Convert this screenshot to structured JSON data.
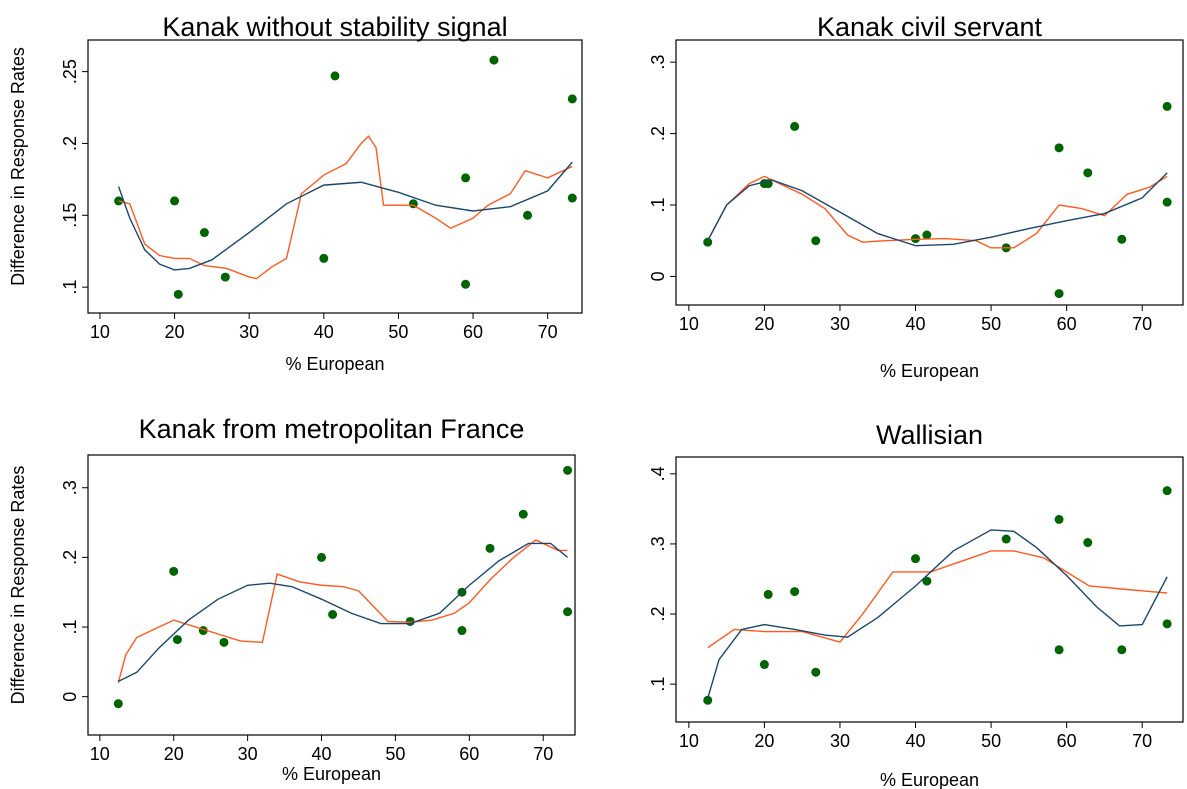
{
  "chart_data": [
    {
      "type": "scatter",
      "title": "Kanak without stability signal",
      "xlabel": "% European",
      "ylabel": "Difference in Response Rates",
      "xlim": [
        8.4,
        74.6
      ],
      "ylim": [
        0.082,
        0.272
      ],
      "xticks": [
        10,
        20,
        30,
        40,
        50,
        60,
        70
      ],
      "yticks": [
        {
          "value": 0.1,
          "label": ".1"
        },
        {
          "value": 0.15,
          "label": ".15"
        },
        {
          "value": 0.2,
          "label": ".2"
        },
        {
          "value": 0.25,
          "label": ".25"
        }
      ],
      "series": [
        {
          "mode": "markers",
          "color": "#006400",
          "x": [
            12.5,
            20,
            20.5,
            24,
            26.8,
            40,
            41.5,
            52,
            59,
            59,
            62.8,
            67.3,
            73.3,
            73.3
          ],
          "values": [
            0.16,
            0.16,
            0.095,
            0.138,
            0.107,
            0.12,
            0.247,
            0.158,
            0.176,
            0.102,
            0.258,
            0.15,
            0.231,
            0.162
          ]
        },
        {
          "mode": "line",
          "color": "#ff5a1f",
          "x": [
            12.5,
            14,
            16,
            18,
            20,
            22,
            24,
            27,
            30,
            31,
            33,
            35,
            37,
            40,
            43,
            45,
            46,
            47,
            48,
            52,
            55,
            57,
            60,
            62,
            65,
            67,
            70,
            73.3
          ],
          "values": [
            0.16,
            0.158,
            0.13,
            0.122,
            0.12,
            0.12,
            0.115,
            0.113,
            0.107,
            0.106,
            0.114,
            0.12,
            0.165,
            0.178,
            0.186,
            0.2,
            0.205,
            0.197,
            0.157,
            0.157,
            0.148,
            0.141,
            0.148,
            0.157,
            0.165,
            0.181,
            0.176,
            0.184
          ]
        },
        {
          "mode": "line",
          "color": "#1a476f",
          "x": [
            12.5,
            14,
            16,
            18,
            20,
            22,
            25,
            30,
            35,
            40,
            45,
            50,
            55,
            60,
            65,
            70,
            73.3
          ],
          "values": [
            0.17,
            0.148,
            0.126,
            0.116,
            0.112,
            0.113,
            0.119,
            0.138,
            0.158,
            0.171,
            0.173,
            0.166,
            0.157,
            0.153,
            0.156,
            0.167,
            0.187
          ]
        }
      ]
    },
    {
      "type": "scatter",
      "title": "Kanak civil servant",
      "xlabel": "% European",
      "xlim": [
        8.3,
        75.4
      ],
      "ylim": [
        -0.04,
        0.331
      ],
      "xticks": [
        10,
        20,
        30,
        40,
        50,
        60,
        70
      ],
      "yticks": [
        0,
        {
          "value": 0.1,
          "label": ".1"
        },
        {
          "value": 0.2,
          "label": ".2"
        },
        {
          "value": 0.3,
          "label": ".3"
        }
      ],
      "series": [
        {
          "mode": "markers",
          "color": "#006400",
          "x": [
            12.5,
            20,
            20.5,
            24,
            26.8,
            40,
            41.5,
            52,
            59,
            59,
            62.8,
            67.3,
            73.3,
            73.3
          ],
          "values": [
            0.048,
            0.13,
            0.13,
            0.21,
            0.05,
            0.053,
            0.058,
            0.04,
            0.18,
            -0.024,
            0.145,
            0.052,
            0.238,
            0.104
          ]
        },
        {
          "mode": "line",
          "color": "#ff5a1f",
          "x": [
            12.5,
            15,
            18,
            20,
            22,
            25,
            28,
            31,
            33,
            36,
            40,
            44,
            48,
            50,
            53,
            56,
            59,
            62,
            65,
            68,
            71,
            73.3
          ],
          "values": [
            0.05,
            0.1,
            0.13,
            0.14,
            0.13,
            0.115,
            0.095,
            0.058,
            0.048,
            0.05,
            0.052,
            0.053,
            0.05,
            0.04,
            0.04,
            0.06,
            0.1,
            0.095,
            0.085,
            0.115,
            0.125,
            0.14
          ]
        },
        {
          "mode": "line",
          "color": "#1a476f",
          "x": [
            12.5,
            15,
            18,
            21,
            25,
            30,
            35,
            40,
            45,
            50,
            55,
            60,
            65,
            70,
            73.3
          ],
          "values": [
            0.05,
            0.1,
            0.127,
            0.135,
            0.12,
            0.09,
            0.06,
            0.043,
            0.045,
            0.055,
            0.067,
            0.078,
            0.088,
            0.11,
            0.145
          ]
        }
      ]
    },
    {
      "type": "scatter",
      "title": "Kanak from metropolitan France",
      "xlabel": "% European",
      "ylabel": "Difference in Response Rates",
      "xlim": [
        8.4,
        74.3
      ],
      "ylim": [
        -0.055,
        0.347
      ],
      "xticks": [
        10,
        20,
        30,
        40,
        50,
        60,
        70
      ],
      "yticks": [
        0,
        {
          "value": 0.1,
          "label": ".1"
        },
        {
          "value": 0.2,
          "label": ".2"
        },
        {
          "value": 0.3,
          "label": ".3"
        }
      ],
      "series": [
        {
          "mode": "markers",
          "color": "#006400",
          "x": [
            12.5,
            20,
            20.5,
            24,
            26.8,
            40,
            41.5,
            52,
            59,
            59,
            62.8,
            67.3,
            73.3,
            73.3
          ],
          "values": [
            -0.01,
            0.18,
            0.082,
            0.095,
            0.078,
            0.2,
            0.118,
            0.108,
            0.15,
            0.095,
            0.213,
            0.262,
            0.325,
            0.122
          ]
        },
        {
          "mode": "line",
          "color": "#ff5a1f",
          "x": [
            12.5,
            13.5,
            15,
            18,
            20,
            23,
            26,
            29,
            32,
            34,
            37,
            40,
            43,
            45,
            47,
            49,
            52,
            55,
            58,
            60,
            63,
            66,
            69,
            72,
            73.3
          ],
          "values": [
            0.02,
            0.06,
            0.085,
            0.1,
            0.11,
            0.1,
            0.09,
            0.08,
            0.078,
            0.176,
            0.165,
            0.16,
            0.158,
            0.152,
            0.13,
            0.108,
            0.107,
            0.11,
            0.12,
            0.135,
            0.17,
            0.2,
            0.225,
            0.21,
            0.21
          ]
        },
        {
          "mode": "line",
          "color": "#1a476f",
          "x": [
            12.5,
            15,
            18,
            22,
            26,
            30,
            33,
            36,
            40,
            44,
            48,
            52,
            56,
            60,
            64,
            68,
            71,
            73.3
          ],
          "values": [
            0.022,
            0.035,
            0.07,
            0.11,
            0.14,
            0.16,
            0.163,
            0.158,
            0.14,
            0.12,
            0.105,
            0.105,
            0.12,
            0.16,
            0.195,
            0.22,
            0.22,
            0.2
          ]
        }
      ]
    },
    {
      "type": "scatter",
      "title": "Wallisian",
      "xlabel": "% European",
      "xlim": [
        8.3,
        75.4
      ],
      "ylim": [
        0.046,
        0.424
      ],
      "xticks": [
        10,
        20,
        30,
        40,
        50,
        60,
        70
      ],
      "yticks": [
        {
          "value": 0.1,
          "label": ".1"
        },
        {
          "value": 0.2,
          "label": ".2"
        },
        {
          "value": 0.3,
          "label": ".3"
        },
        {
          "value": 0.4,
          "label": ".4"
        }
      ],
      "series": [
        {
          "mode": "markers",
          "color": "#006400",
          "x": [
            12.5,
            20,
            20.5,
            24,
            26.8,
            40,
            41.5,
            52,
            59,
            59,
            62.8,
            67.3,
            73.3,
            73.3
          ],
          "values": [
            0.077,
            0.128,
            0.228,
            0.232,
            0.117,
            0.279,
            0.247,
            0.307,
            0.335,
            0.149,
            0.302,
            0.149,
            0.376,
            0.186
          ]
        },
        {
          "mode": "line",
          "color": "#ff5a1f",
          "x": [
            12.5,
            16,
            20,
            25,
            30,
            33,
            37,
            42,
            46,
            50,
            53,
            57,
            60,
            63,
            68,
            73.3
          ],
          "values": [
            0.152,
            0.178,
            0.175,
            0.175,
            0.16,
            0.2,
            0.26,
            0.26,
            0.275,
            0.29,
            0.29,
            0.28,
            0.26,
            0.24,
            0.235,
            0.23
          ]
        },
        {
          "mode": "line",
          "color": "#1a476f",
          "x": [
            12.5,
            14,
            17,
            20,
            24,
            28,
            31,
            35,
            40,
            45,
            50,
            53,
            56,
            60,
            64,
            67,
            70,
            73.3
          ],
          "values": [
            0.08,
            0.135,
            0.178,
            0.185,
            0.178,
            0.17,
            0.167,
            0.195,
            0.24,
            0.29,
            0.32,
            0.318,
            0.295,
            0.255,
            0.21,
            0.183,
            0.185,
            0.253
          ]
        }
      ]
    }
  ]
}
